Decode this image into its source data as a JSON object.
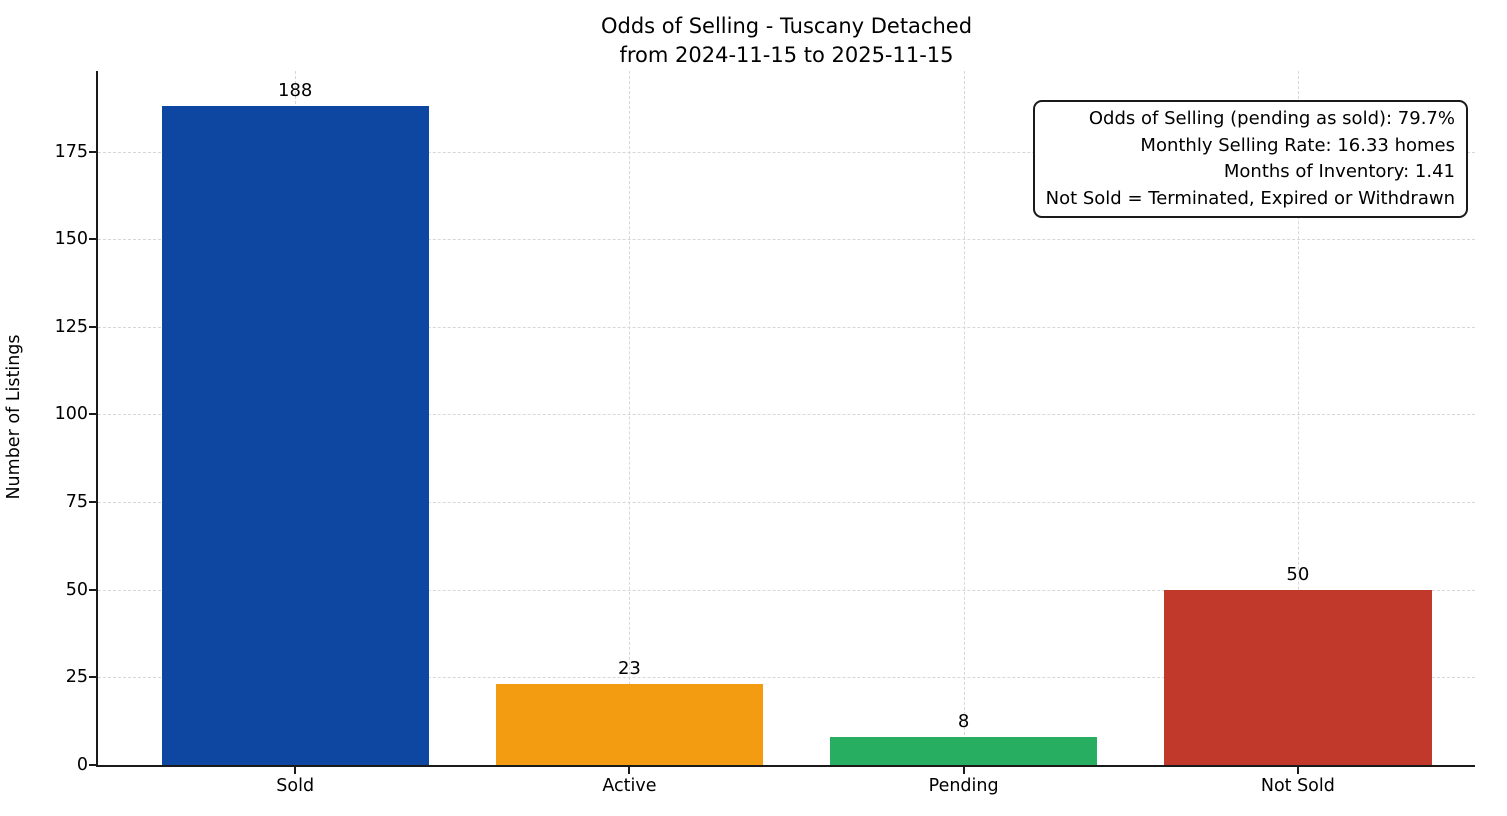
{
  "chart_data": {
    "type": "bar",
    "title": "Odds of Selling - Tuscany Detached",
    "subtitle": "from 2024-11-15 to 2025-11-15",
    "categories": [
      "Sold",
      "Active",
      "Pending",
      "Not Sold"
    ],
    "values": [
      188,
      23,
      8,
      50
    ],
    "bar_colors": [
      "#0d47a1",
      "#f39c12",
      "#27ae60",
      "#c0392b"
    ],
    "xlabel": "",
    "ylabel": "Number of Listings",
    "yticks": [
      0,
      25,
      50,
      75,
      100,
      125,
      150,
      175
    ],
    "ylim": [
      0,
      198
    ],
    "xlim": [
      -0.59,
      3.53
    ],
    "bar_width": 0.8,
    "grid": "dashed, horizontal at yticks and vertical at bar centers",
    "legend_position": "none",
    "annotation_lines": [
      "Odds of Selling (pending as sold): 79.7%",
      "Monthly Selling Rate: 16.33 homes",
      "Months of Inventory: 1.41",
      "Not Sold = Terminated, Expired or Withdrawn"
    ]
  }
}
